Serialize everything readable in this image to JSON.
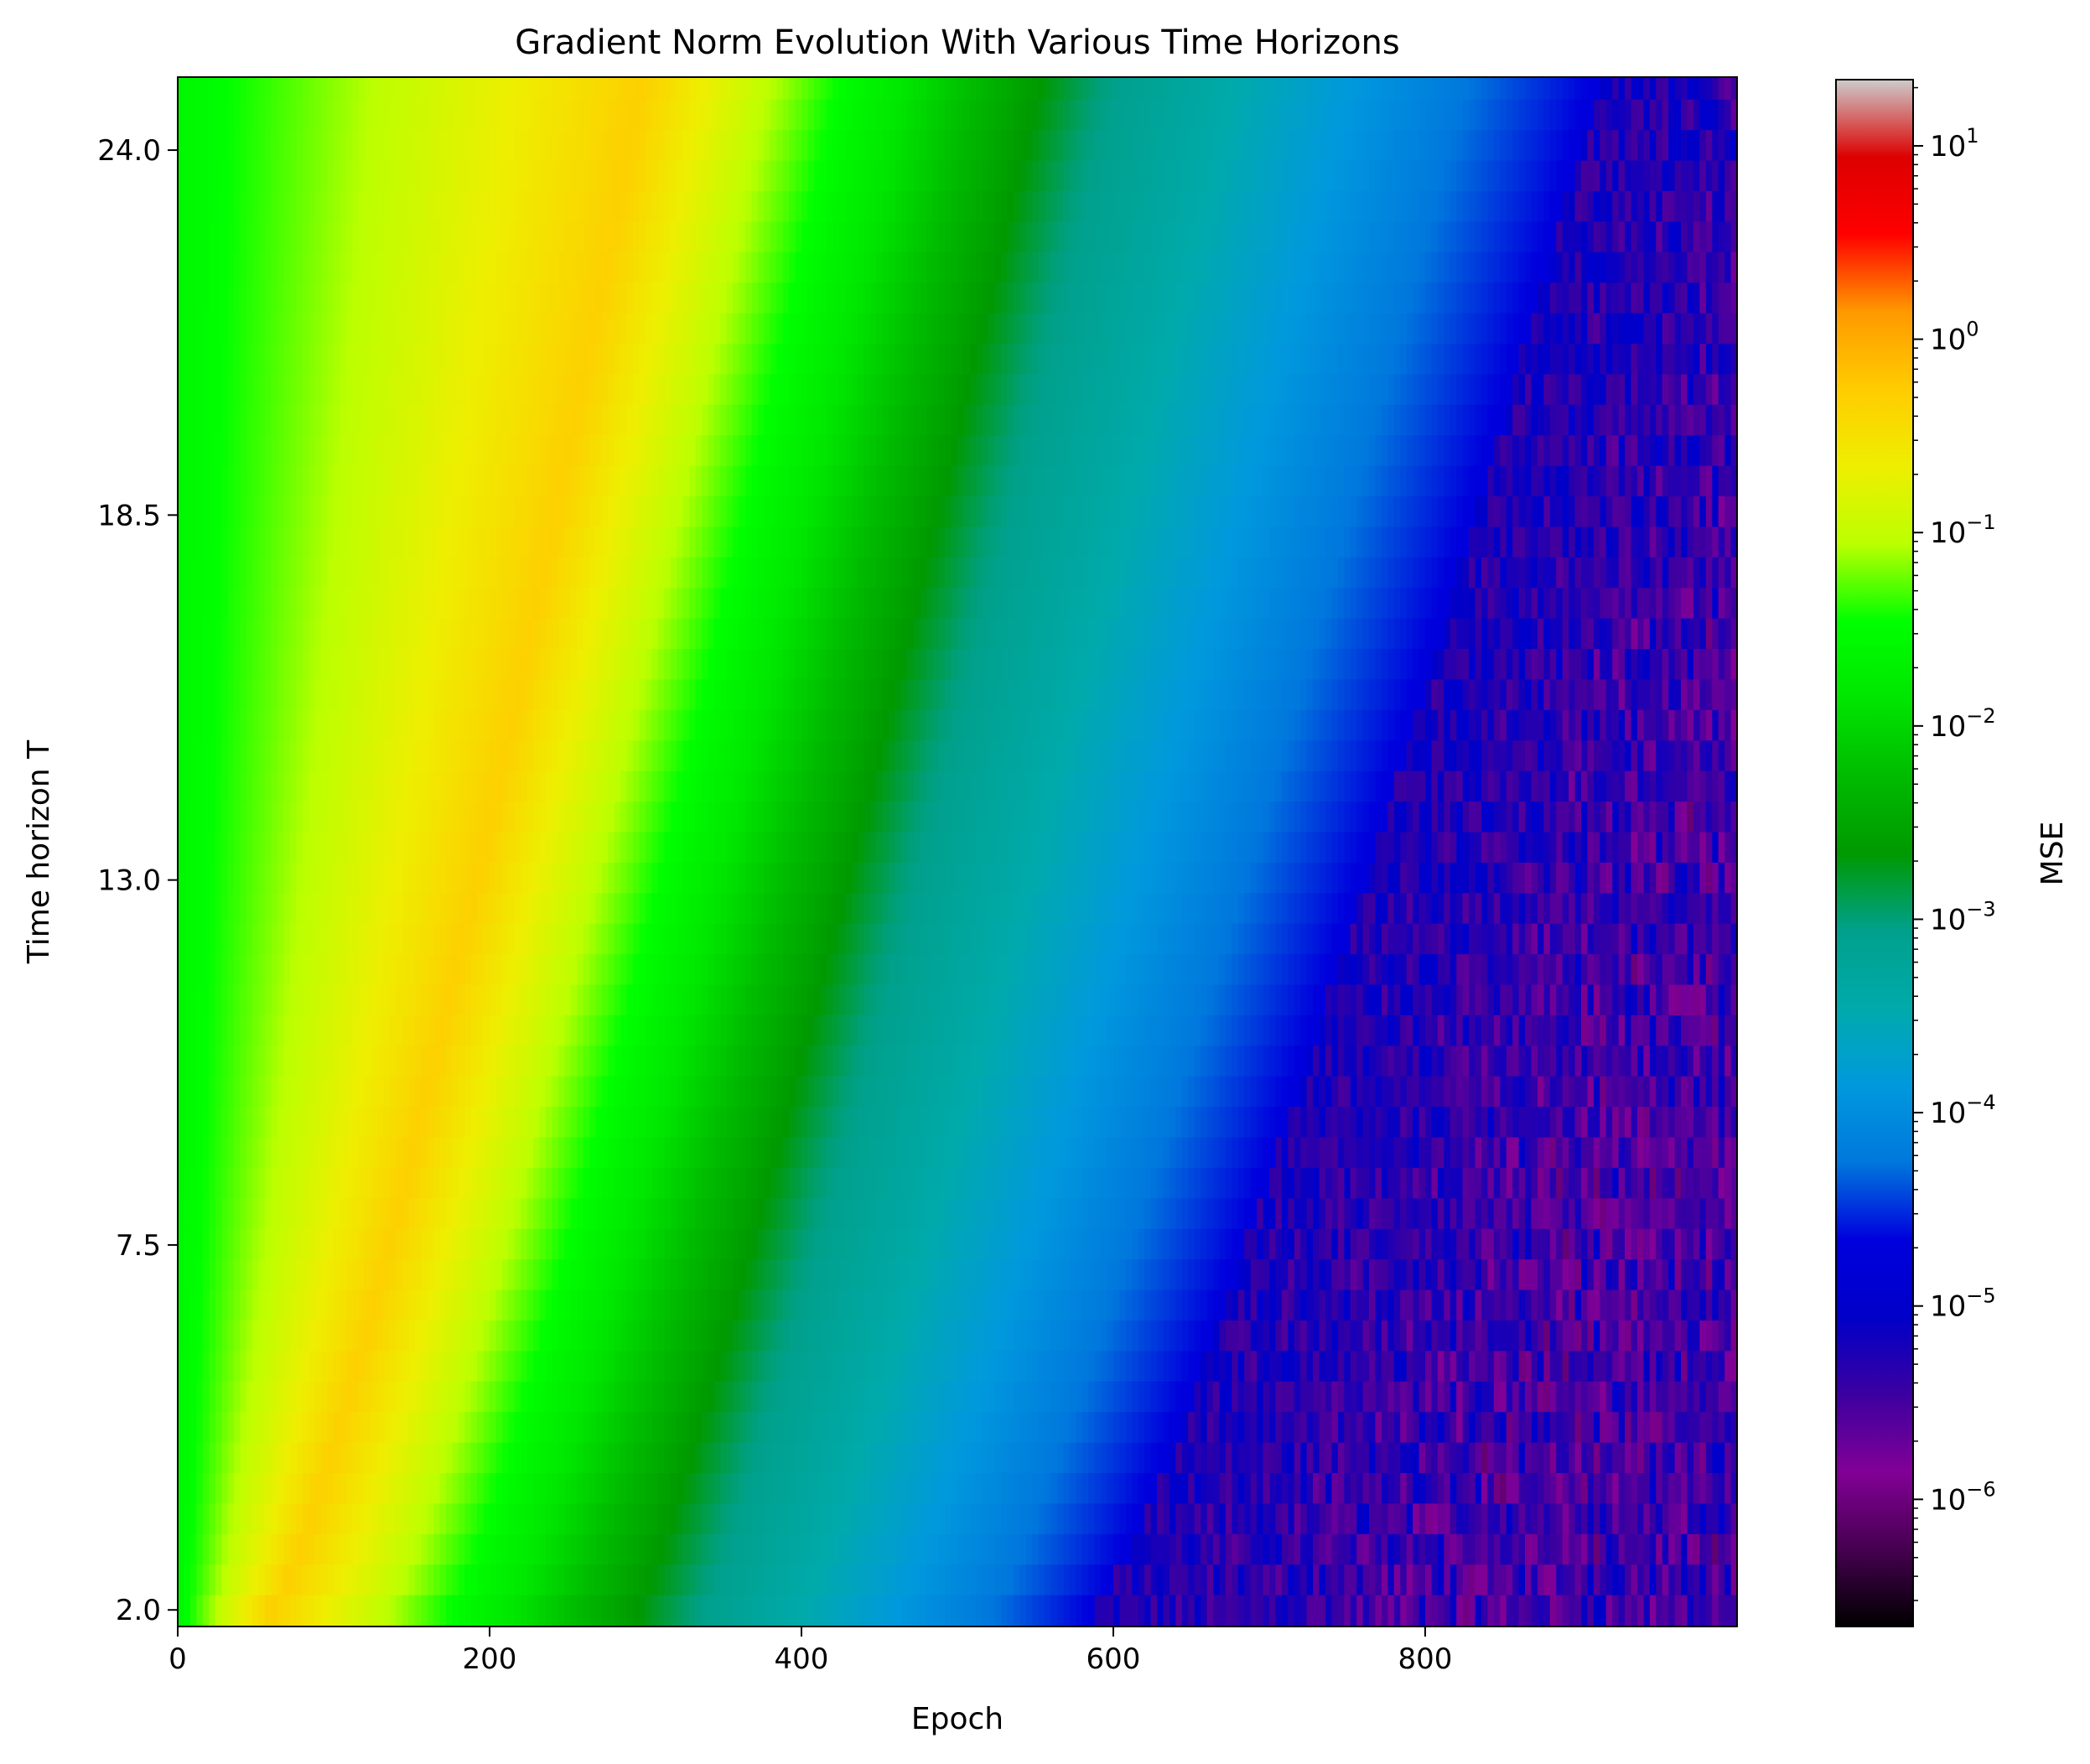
{
  "chart_data": {
    "type": "heatmap",
    "title": "Gradient Norm Evolution With Various Time Horizons",
    "xlabel": "Epoch",
    "ylabel": "Time horizon T",
    "xlim": [
      0,
      1000
    ],
    "ylim": [
      1.75,
      25.1
    ],
    "x_ticks": [
      0,
      200,
      400,
      600,
      800
    ],
    "x_tick_labels": [
      "0",
      "200",
      "400",
      "600",
      "800"
    ],
    "y_ticks": [
      2.0,
      7.5,
      13.0,
      18.5,
      24.0
    ],
    "y_tick_labels": [
      "2.0",
      "7.5",
      "13.0",
      "18.5",
      "24.0"
    ],
    "colorbar": {
      "label": "MSE",
      "scale": "log",
      "range": [
        2.2e-07,
        22
      ],
      "ticks": [
        1e-06,
        1e-05,
        0.0001,
        0.001,
        0.01,
        0.1,
        1,
        10
      ],
      "tick_base": "10",
      "tick_exponents": [
        "−6",
        "−5",
        "−4",
        "−3",
        "−2",
        "−1",
        "0",
        "1"
      ],
      "colormap": "nipy_spectral"
    },
    "rows": 51,
    "row_T_range": [
      2.0,
      25.0
    ],
    "description_bands": {
      "peak_ridge_epoch_at_T2": 60,
      "peak_ridge_epoch_at_T24": 290,
      "trough_ridge_epoch_at_T2": 330,
      "trough_ridge_epoch_at_T24": 580,
      "noise_floor_onset_epoch_at_T2": 590,
      "noise_floor_onset_epoch_at_T24": 900
    }
  }
}
